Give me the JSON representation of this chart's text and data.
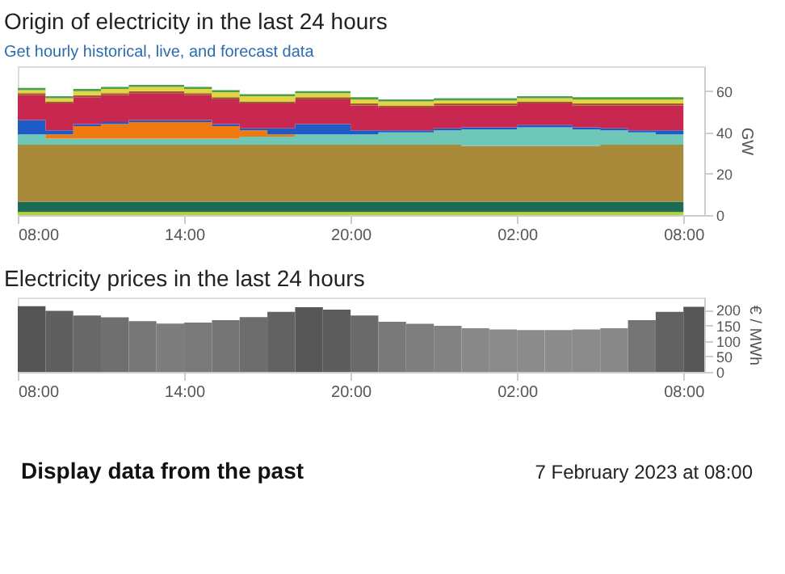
{
  "chart_data": [
    {
      "type": "area",
      "title": "Origin of electricity in the last 24 hours",
      "subtitle": "Get hourly historical, live, and forecast data",
      "ylabel": "GW",
      "stacked": true,
      "x": [
        "2023-02-06T08:00",
        "2023-02-06T09:00",
        "2023-02-06T10:00",
        "2023-02-06T11:00",
        "2023-02-06T12:00",
        "2023-02-06T13:00",
        "2023-02-06T14:00",
        "2023-02-06T15:00",
        "2023-02-06T16:00",
        "2023-02-06T17:00",
        "2023-02-06T18:00",
        "2023-02-06T19:00",
        "2023-02-06T20:00",
        "2023-02-06T21:00",
        "2023-02-06T22:00",
        "2023-02-06T23:00",
        "2023-02-07T00:00",
        "2023-02-07T01:00",
        "2023-02-07T02:00",
        "2023-02-07T03:00",
        "2023-02-07T04:00",
        "2023-02-07T05:00",
        "2023-02-07T06:00",
        "2023-02-07T07:00",
        "2023-02-07T08:00"
      ],
      "xlim": [
        "2023-02-06T08:00",
        "2023-02-07T08:45"
      ],
      "xticks": [
        {
          "value": "2023-02-06T08:00",
          "label": "08:00"
        },
        {
          "value": "2023-02-06T14:00",
          "label": "14:00"
        },
        {
          "value": "2023-02-06T20:00",
          "label": "20:00"
        },
        {
          "value": "2023-02-07T02:00",
          "label": "02:00"
        },
        {
          "value": "2023-02-07T08:00",
          "label": "08:00"
        }
      ],
      "ylim": [
        0,
        72
      ],
      "yticks": [
        0,
        20,
        40,
        60
      ],
      "series": [
        {
          "color": "#b5d334",
          "values": [
            1.5,
            1.5,
            1.5,
            1.5,
            1.5,
            1.5,
            1.5,
            1.5,
            1.5,
            1.5,
            1.5,
            1.5,
            1.5,
            1.5,
            1.5,
            1.5,
            1.5,
            1.5,
            1.5,
            1.5,
            1.5,
            1.5,
            1.5,
            1.5,
            1.5
          ]
        },
        {
          "color": "#1e6b55",
          "values": [
            5,
            5,
            5,
            5,
            5,
            5,
            5,
            5,
            5,
            5,
            5,
            5,
            5,
            5,
            5,
            5,
            5,
            5,
            5,
            5,
            5,
            5,
            5,
            5,
            5
          ]
        },
        {
          "color": "#a8893a",
          "values": [
            27.5,
            27.5,
            27.5,
            27.5,
            27.5,
            27.5,
            27.5,
            27.5,
            27.5,
            27.5,
            27.5,
            27.5,
            27.5,
            27.5,
            27.5,
            27.5,
            27,
            27,
            27,
            27,
            27,
            27.5,
            27.5,
            27.5,
            27.5
          ]
        },
        {
          "color": "#6fc7b8",
          "values": [
            5,
            3,
            3,
            3,
            3,
            3,
            3,
            3,
            4,
            4,
            5,
            5,
            5,
            6,
            6,
            7,
            8,
            8,
            9,
            9,
            8,
            7,
            6,
            5,
            5
          ]
        },
        {
          "color": "#f07a10",
          "values": [
            0,
            2,
            6,
            7,
            8,
            8,
            8,
            6,
            3,
            1,
            0,
            0,
            0,
            0,
            0,
            0,
            0,
            0,
            0,
            0,
            0,
            0,
            0,
            0,
            0
          ]
        },
        {
          "color": "#1e5bc6",
          "values": [
            7,
            2,
            1,
            1,
            1,
            1,
            1,
            1,
            1,
            3,
            5,
            5,
            2,
            1,
            1,
            1,
            1,
            1,
            1,
            1,
            1,
            1,
            1,
            2,
            2
          ]
        },
        {
          "color": "#c8284f",
          "values": [
            12,
            13,
            13,
            13,
            13,
            13,
            12,
            12,
            12,
            12,
            12,
            12,
            12,
            11,
            11,
            11,
            10.5,
            10.5,
            10.5,
            10.5,
            10.5,
            11,
            12,
            12,
            12
          ]
        },
        {
          "color": "#9c5a2a",
          "values": [
            1,
            1,
            1,
            1,
            1,
            1,
            1,
            1,
            1,
            1,
            1,
            1,
            1,
            1,
            1,
            1,
            1,
            1,
            1,
            1,
            1,
            1,
            1,
            1,
            1
          ]
        },
        {
          "color": "#e3d444",
          "values": [
            1.5,
            1.5,
            2,
            2,
            2,
            2,
            2,
            2.5,
            2.5,
            2.5,
            2,
            2,
            2,
            2,
            2,
            1.5,
            1.5,
            1.5,
            1.5,
            1.5,
            2,
            2,
            2,
            2,
            1.5
          ]
        },
        {
          "color": "#4aa04a",
          "values": [
            1,
            1,
            1,
            1,
            1,
            1,
            1,
            1,
            1,
            1,
            1,
            1,
            1,
            1,
            1,
            1,
            1,
            1,
            1,
            1,
            1,
            1,
            1,
            1,
            1
          ]
        }
      ]
    },
    {
      "type": "bar",
      "title": "Electricity prices in the last 24 hours",
      "ylabel": "€ / MWh",
      "x": [
        "2023-02-06T08:30",
        "2023-02-06T09:30",
        "2023-02-06T10:30",
        "2023-02-06T11:30",
        "2023-02-06T12:30",
        "2023-02-06T13:30",
        "2023-02-06T14:30",
        "2023-02-06T15:30",
        "2023-02-06T16:30",
        "2023-02-06T17:30",
        "2023-02-06T18:30",
        "2023-02-06T19:30",
        "2023-02-06T20:30",
        "2023-02-06T21:30",
        "2023-02-06T22:30",
        "2023-02-06T23:30",
        "2023-02-07T00:30",
        "2023-02-07T01:30",
        "2023-02-07T02:30",
        "2023-02-07T03:30",
        "2023-02-07T04:30",
        "2023-02-07T05:30",
        "2023-02-07T06:30",
        "2023-02-07T07:30",
        "2023-02-07T08:30"
      ],
      "xlim": [
        "2023-02-06T08:00",
        "2023-02-07T08:45"
      ],
      "xticks": [
        {
          "value": "2023-02-06T08:00",
          "label": "08:00"
        },
        {
          "value": "2023-02-06T14:00",
          "label": "14:00"
        },
        {
          "value": "2023-02-06T20:00",
          "label": "20:00"
        },
        {
          "value": "2023-02-07T02:00",
          "label": "02:00"
        },
        {
          "value": "2023-02-07T08:00",
          "label": "08:00"
        }
      ],
      "ylim": [
        0,
        240
      ],
      "yticks": [
        0,
        50,
        100,
        150,
        200
      ],
      "values": [
        212,
        197,
        182,
        176,
        164,
        156,
        159,
        167,
        177,
        194,
        209,
        201,
        182,
        162,
        155,
        149,
        141,
        137,
        135,
        135,
        137,
        141,
        167,
        194,
        210
      ],
      "colors": [
        "#555555",
        "#5f5f5f",
        "#686868",
        "#6f6f6f",
        "#777777",
        "#7d7d7d",
        "#7a7a7a",
        "#757575",
        "#6d6d6d",
        "#626262",
        "#575757",
        "#5d5d5d",
        "#6a6a6a",
        "#797979",
        "#7e7e7e",
        "#828282",
        "#888888",
        "#8b8b8b",
        "#8c8c8c",
        "#8c8c8c",
        "#8b8b8b",
        "#888888",
        "#757575",
        "#626262",
        "#565656"
      ],
      "annotations": [
        "Display data from the past",
        "7 February 2023 at 08:00"
      ]
    }
  ]
}
